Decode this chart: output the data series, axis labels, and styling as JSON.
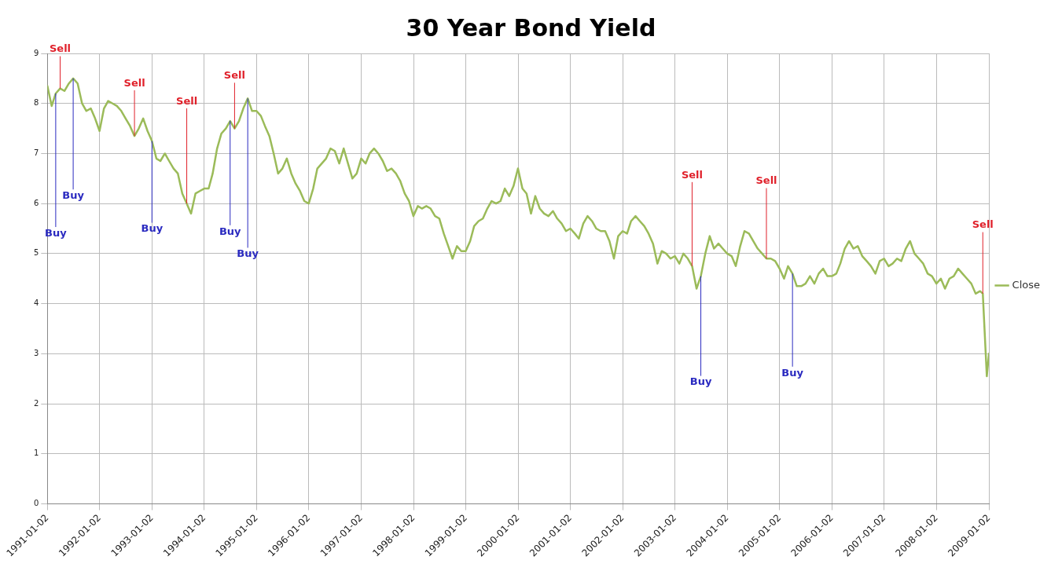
{
  "chart_data": {
    "type": "line",
    "title": "30 Year Bond Yield",
    "xlim": [
      "1991-01-02",
      "2009-01-02"
    ],
    "xticks": [
      "1991-01-02",
      "1992-01-02",
      "1993-01-02",
      "1994-01-02",
      "1995-01-02",
      "1996-01-02",
      "1997-01-02",
      "1998-01-02",
      "1999-01-02",
      "2000-01-02",
      "2001-01-02",
      "2002-01-02",
      "2003-01-02",
      "2004-01-02",
      "2005-01-02",
      "2006-01-02",
      "2007-01-02",
      "2008-01-02",
      "2009-01-02"
    ],
    "ylim": [
      0,
      9
    ],
    "yticks": [
      0,
      1,
      2,
      3,
      4,
      5,
      6,
      7,
      8,
      9
    ],
    "grid": true,
    "legend": "right",
    "marker": "none",
    "line_style": "solid",
    "series": [
      {
        "name": "Close",
        "color": "#9bbb59",
        "x": [
          "1991-01-02",
          "1991-02",
          "1991-03",
          "1991-04",
          "1991-05",
          "1991-06",
          "1991-07",
          "1991-08",
          "1991-09",
          "1991-10",
          "1991-11",
          "1991-12",
          "1992-01",
          "1992-02",
          "1992-03",
          "1992-04",
          "1992-05",
          "1992-06",
          "1992-07",
          "1992-08",
          "1992-09",
          "1992-10",
          "1992-11",
          "1992-12",
          "1993-01",
          "1993-02",
          "1993-03",
          "1993-04",
          "1993-05",
          "1993-06",
          "1993-07",
          "1993-08",
          "1993-09",
          "1993-10",
          "1993-11",
          "1993-12",
          "1994-01",
          "1994-02",
          "1994-03",
          "1994-04",
          "1994-05",
          "1994-06",
          "1994-07",
          "1994-08",
          "1994-09",
          "1994-10",
          "1994-11",
          "1994-12",
          "1995-01",
          "1995-02",
          "1995-03",
          "1995-04",
          "1995-05",
          "1995-06",
          "1995-07",
          "1995-08",
          "1995-09",
          "1995-10",
          "1995-11",
          "1995-12",
          "1996-01",
          "1996-02",
          "1996-03",
          "1996-04",
          "1996-05",
          "1996-06",
          "1996-07",
          "1996-08",
          "1996-09",
          "1996-10",
          "1996-11",
          "1996-12",
          "1997-01",
          "1997-02",
          "1997-03",
          "1997-04",
          "1997-05",
          "1997-06",
          "1997-07",
          "1997-08",
          "1997-09",
          "1997-10",
          "1997-11",
          "1997-12",
          "1998-01",
          "1998-02",
          "1998-03",
          "1998-04",
          "1998-05",
          "1998-06",
          "1998-07",
          "1998-08",
          "1998-09",
          "1998-10",
          "1998-11",
          "1998-12",
          "1999-01",
          "1999-02",
          "1999-03",
          "1999-04",
          "1999-05",
          "1999-06",
          "1999-07",
          "1999-08",
          "1999-09",
          "1999-10",
          "1999-11",
          "1999-12",
          "2000-01",
          "2000-02",
          "2000-03",
          "2000-04",
          "2000-05",
          "2000-06",
          "2000-07",
          "2000-08",
          "2000-09",
          "2000-10",
          "2000-11",
          "2000-12",
          "2001-01",
          "2001-02",
          "2001-03",
          "2001-04",
          "2001-05",
          "2001-06",
          "2001-07",
          "2001-08",
          "2001-09",
          "2001-10",
          "2001-11",
          "2001-12",
          "2002-01",
          "2002-02",
          "2002-03",
          "2002-04",
          "2002-05",
          "2002-06",
          "2002-07",
          "2002-08",
          "2002-09",
          "2002-10",
          "2002-11",
          "2002-12",
          "2003-01",
          "2003-02",
          "2003-03",
          "2003-04",
          "2003-05",
          "2003-06",
          "2003-07",
          "2003-08",
          "2003-09",
          "2003-10",
          "2003-11",
          "2003-12",
          "2004-01",
          "2004-02",
          "2004-03",
          "2004-04",
          "2004-05",
          "2004-06",
          "2004-07",
          "2004-08",
          "2004-09",
          "2004-10",
          "2004-11",
          "2004-12",
          "2005-01",
          "2005-02",
          "2005-03",
          "2005-04",
          "2005-05",
          "2005-06",
          "2005-07",
          "2005-08",
          "2005-09",
          "2005-10",
          "2005-11",
          "2005-12",
          "2006-01",
          "2006-02",
          "2006-03",
          "2006-04",
          "2006-05",
          "2006-06",
          "2006-07",
          "2006-08",
          "2006-09",
          "2006-10",
          "2006-11",
          "2006-12",
          "2007-01",
          "2007-02",
          "2007-03",
          "2007-04",
          "2007-05",
          "2007-06",
          "2007-07",
          "2007-08",
          "2007-09",
          "2007-10",
          "2007-11",
          "2007-12",
          "2008-01",
          "2008-02",
          "2008-03",
          "2008-04",
          "2008-05",
          "2008-06",
          "2008-07",
          "2008-08",
          "2008-09",
          "2008-10",
          "2008-11",
          "2008-11-20",
          "2008-12-18",
          "2009-01-02"
        ],
        "values": [
          8.35,
          7.95,
          8.2,
          8.3,
          8.25,
          8.4,
          8.5,
          8.4,
          8.0,
          7.85,
          7.9,
          7.7,
          7.45,
          7.9,
          8.05,
          8.0,
          7.95,
          7.85,
          7.7,
          7.55,
          7.35,
          7.5,
          7.7,
          7.45,
          7.25,
          6.9,
          6.85,
          7.0,
          6.85,
          6.7,
          6.6,
          6.2,
          6.0,
          5.8,
          6.2,
          6.25,
          6.3,
          6.3,
          6.6,
          7.1,
          7.4,
          7.5,
          7.65,
          7.5,
          7.65,
          7.9,
          8.1,
          7.85,
          7.85,
          7.75,
          7.55,
          7.35,
          7.0,
          6.6,
          6.7,
          6.9,
          6.6,
          6.4,
          6.25,
          6.05,
          6.0,
          6.3,
          6.7,
          6.8,
          6.9,
          7.1,
          7.05,
          6.8,
          7.1,
          6.8,
          6.5,
          6.6,
          6.9,
          6.8,
          7.0,
          7.1,
          7.0,
          6.85,
          6.65,
          6.7,
          6.6,
          6.45,
          6.2,
          6.05,
          5.75,
          5.95,
          5.9,
          5.95,
          5.9,
          5.75,
          5.7,
          5.4,
          5.15,
          4.9,
          5.15,
          5.05,
          5.05,
          5.25,
          5.55,
          5.65,
          5.7,
          5.9,
          6.05,
          6.0,
          6.05,
          6.3,
          6.15,
          6.35,
          6.7,
          6.3,
          6.2,
          5.8,
          6.15,
          5.9,
          5.8,
          5.75,
          5.85,
          5.7,
          5.6,
          5.45,
          5.5,
          5.4,
          5.3,
          5.6,
          5.75,
          5.65,
          5.5,
          5.45,
          5.45,
          5.25,
          4.9,
          5.35,
          5.45,
          5.4,
          5.65,
          5.75,
          5.65,
          5.55,
          5.4,
          5.2,
          4.8,
          5.05,
          5.0,
          4.9,
          4.95,
          4.8,
          5.0,
          4.9,
          4.75,
          4.3,
          4.55,
          5.0,
          5.35,
          5.1,
          5.2,
          5.1,
          5.0,
          4.95,
          4.75,
          5.15,
          5.45,
          5.4,
          5.25,
          5.1,
          5.0,
          4.9,
          4.9,
          4.85,
          4.7,
          4.5,
          4.75,
          4.6,
          4.35,
          4.35,
          4.4,
          4.55,
          4.4,
          4.6,
          4.7,
          4.55,
          4.55,
          4.6,
          4.8,
          5.1,
          5.25,
          5.1,
          5.15,
          4.95,
          4.85,
          4.75,
          4.6,
          4.85,
          4.9,
          4.75,
          4.8,
          4.9,
          4.85,
          5.1,
          5.25,
          5.0,
          4.9,
          4.8,
          4.6,
          4.55,
          4.4,
          4.5,
          4.3,
          4.5,
          4.55,
          4.7,
          4.6,
          4.5,
          4.4,
          4.2,
          4.25,
          4.2,
          2.55,
          3.0
        ]
      }
    ],
    "annotations": [
      {
        "text": "Sell",
        "x": "1991-04",
        "y": 8.3
      },
      {
        "text": "Buy",
        "x": "1991-03",
        "y": 8.2
      },
      {
        "text": "Buy",
        "x": "1991-07",
        "y": 8.5
      },
      {
        "text": "Sell",
        "x": "1992-09",
        "y": 7.35
      },
      {
        "text": "Buy",
        "x": "1993-01",
        "y": 7.25
      },
      {
        "text": "Sell",
        "x": "1993-09",
        "y": 6.0
      },
      {
        "text": "Sell",
        "x": "1994-08",
        "y": 7.5
      },
      {
        "text": "Buy",
        "x": "1994-07",
        "y": 7.65
      },
      {
        "text": "Buy",
        "x": "1994-11",
        "y": 8.1
      },
      {
        "text": "Sell",
        "x": "2003-05",
        "y": 4.75
      },
      {
        "text": "Buy",
        "x": "2003-07",
        "y": 4.55
      },
      {
        "text": "Sell",
        "x": "2004-10",
        "y": 4.9
      },
      {
        "text": "Buy",
        "x": "2005-04",
        "y": 4.6
      },
      {
        "text": "Sell",
        "x": "2008-11-20",
        "y": 4.2
      }
    ]
  }
}
